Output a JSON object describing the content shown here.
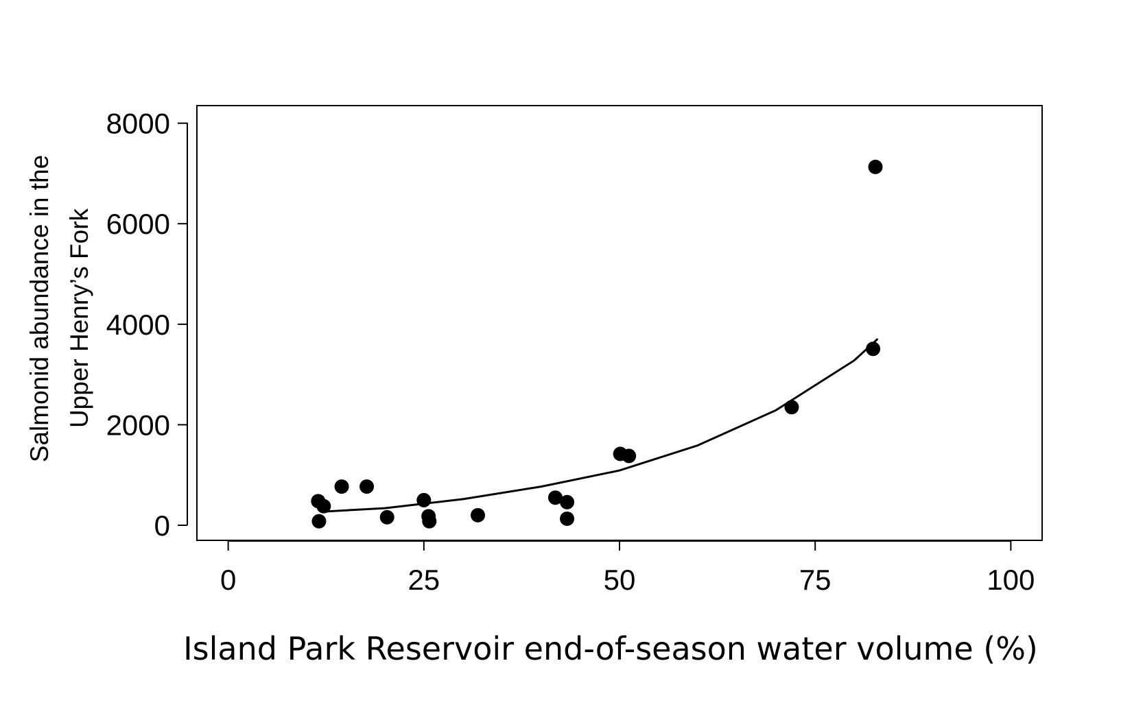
{
  "chart_data": {
    "type": "scatter",
    "xlabel": "Island Park Reservoir end-of-season water volume (%)",
    "ylabel_lines": [
      "Salmonid abundance in the",
      "Upper Henry’s Fork"
    ],
    "xlim": [
      -4,
      104
    ],
    "ylim": [
      -300,
      8350
    ],
    "xticks": [
      0,
      25,
      50,
      75,
      100
    ],
    "yticks": [
      0,
      2000,
      4000,
      6000,
      8000
    ],
    "grid": false,
    "legend": "none",
    "points": [
      {
        "x": 11.5,
        "y": 480
      },
      {
        "x": 12.2,
        "y": 380
      },
      {
        "x": 11.6,
        "y": 80
      },
      {
        "x": 14.5,
        "y": 770
      },
      {
        "x": 17.7,
        "y": 770
      },
      {
        "x": 20.3,
        "y": 160
      },
      {
        "x": 25.0,
        "y": 500
      },
      {
        "x": 25.6,
        "y": 180
      },
      {
        "x": 25.7,
        "y": 80
      },
      {
        "x": 31.9,
        "y": 200
      },
      {
        "x": 41.8,
        "y": 550
      },
      {
        "x": 43.3,
        "y": 460
      },
      {
        "x": 43.3,
        "y": 130
      },
      {
        "x": 50.1,
        "y": 1420
      },
      {
        "x": 51.2,
        "y": 1380
      },
      {
        "x": 72.0,
        "y": 2350
      },
      {
        "x": 82.4,
        "y": 3510
      },
      {
        "x": 82.7,
        "y": 7130
      }
    ],
    "fit_curve": {
      "type": "exponential",
      "x": [
        12,
        20,
        30,
        40,
        50,
        60,
        70,
        80,
        83
      ],
      "y": [
        270,
        340,
        520,
        770,
        1090,
        1590,
        2290,
        3280,
        3710
      ]
    },
    "colors": {
      "points": "#000000",
      "line": "#000000",
      "axes": "#000000"
    }
  }
}
